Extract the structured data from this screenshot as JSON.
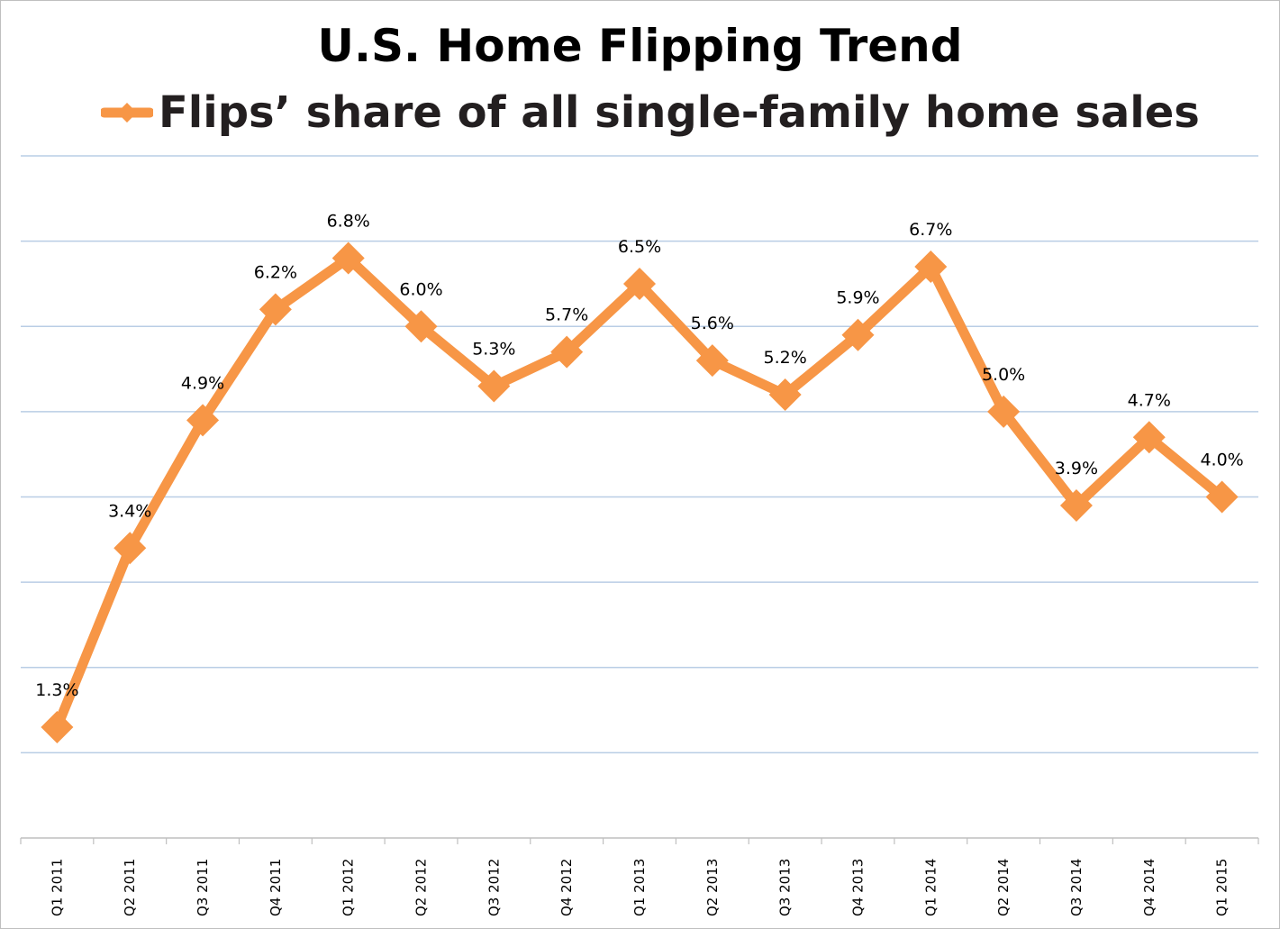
{
  "chart_data": {
    "type": "line",
    "title": "U.S. Home Flipping Trend",
    "series": [
      {
        "name": "Flips’ share of all single-family home sales",
        "color": "#f79646",
        "values": [
          1.3,
          3.4,
          4.9,
          6.2,
          6.8,
          6.0,
          5.3,
          5.7,
          6.5,
          5.6,
          5.2,
          5.9,
          6.7,
          5.0,
          3.9,
          4.7,
          4.0
        ],
        "data_labels": [
          "1.3%",
          "3.4%",
          "4.9%",
          "6.2%",
          "6.8%",
          "6.0%",
          "5.3%",
          "5.7%",
          "6.5%",
          "5.6%",
          "5.2%",
          "5.9%",
          "6.7%",
          "5.0%",
          "3.9%",
          "4.7%",
          "4.0%"
        ]
      }
    ],
    "categories": [
      "Q1 2011",
      "Q2 2011",
      "Q3 2011",
      "Q4 2011",
      "Q1 2012",
      "Q2 2012",
      "Q3 2012",
      "Q4 2012",
      "Q1 2013",
      "Q2 2013",
      "Q3 2013",
      "Q4 2013",
      "Q1 2014",
      "Q2 2014",
      "Q3 2014",
      "Q4 2014",
      "Q1 2015"
    ],
    "ylim": [
      0,
      8
    ],
    "ygrid_step": 1,
    "grid": true,
    "legend_position": "top",
    "xlabel": "",
    "ylabel": "",
    "gridline_color": "#b9cde5",
    "axis_color": "#bfbfbf"
  }
}
